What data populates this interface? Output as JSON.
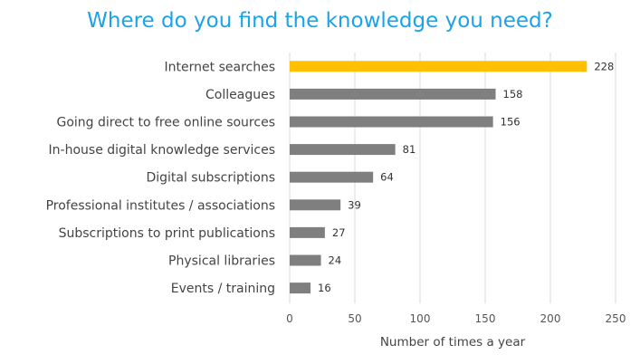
{
  "chart_data": {
    "type": "bar",
    "orientation": "horizontal",
    "title": "Where do you find the knowledge you need?",
    "xlabel": "Number of times a year",
    "ylabel": "",
    "categories": [
      "Internet searches",
      "Colleagues",
      "Going direct to free online sources",
      "In-house digital knowledge services",
      "Digital subscriptions",
      "Professional institutes / associations",
      "Subscriptions to print publications",
      "Physical libraries",
      "Events / training"
    ],
    "values": [
      228,
      158,
      156,
      81,
      64,
      39,
      27,
      24,
      16
    ],
    "xlim": [
      0,
      250
    ],
    "xticks": [
      0,
      50,
      100,
      150,
      200,
      250
    ],
    "grid": true,
    "legend": "none",
    "colors": {
      "highlight": "#ffc000",
      "bar": "#7f7f7f",
      "title": "#1aa3e8",
      "grid": "#d9d9d9"
    }
  }
}
